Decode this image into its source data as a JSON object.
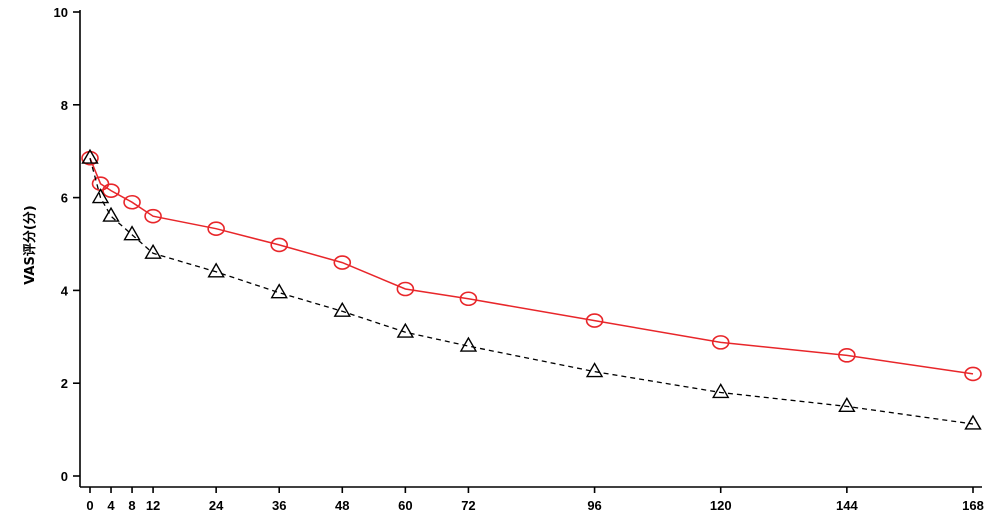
{
  "chart_data": {
    "type": "line",
    "ylabel": "VAS评分(分)",
    "xlabel": "",
    "x_ticks": [
      0,
      4,
      8,
      12,
      24,
      36,
      48,
      60,
      72,
      96,
      120,
      144,
      168
    ],
    "y_ticks": [
      0,
      2,
      4,
      6,
      8,
      10
    ],
    "xlim": [
      0,
      168
    ],
    "ylim": [
      0,
      10
    ],
    "grid": false,
    "series": [
      {
        "color": "#e8262a",
        "marker": "circle",
        "line": "solid",
        "points": [
          [
            0,
            6.85
          ],
          [
            2,
            6.3
          ],
          [
            4,
            6.15
          ],
          [
            8,
            5.9
          ],
          [
            12,
            5.6
          ],
          [
            24,
            5.33
          ],
          [
            36,
            4.98
          ],
          [
            48,
            4.6
          ],
          [
            60,
            4.03
          ],
          [
            72,
            3.82
          ],
          [
            96,
            3.35
          ],
          [
            120,
            2.88
          ],
          [
            144,
            2.6
          ],
          [
            168,
            2.2
          ]
        ]
      },
      {
        "color": "#000000",
        "marker": "triangle",
        "line": "dashed",
        "points": [
          [
            0,
            6.85
          ],
          [
            2,
            6.0
          ],
          [
            4,
            5.6
          ],
          [
            8,
            5.2
          ],
          [
            12,
            4.8
          ],
          [
            24,
            4.4
          ],
          [
            36,
            3.95
          ],
          [
            48,
            3.55
          ],
          [
            60,
            3.1
          ],
          [
            72,
            2.8
          ],
          [
            96,
            2.25
          ],
          [
            120,
            1.8
          ],
          [
            144,
            1.5
          ],
          [
            168,
            1.12
          ]
        ]
      }
    ]
  }
}
